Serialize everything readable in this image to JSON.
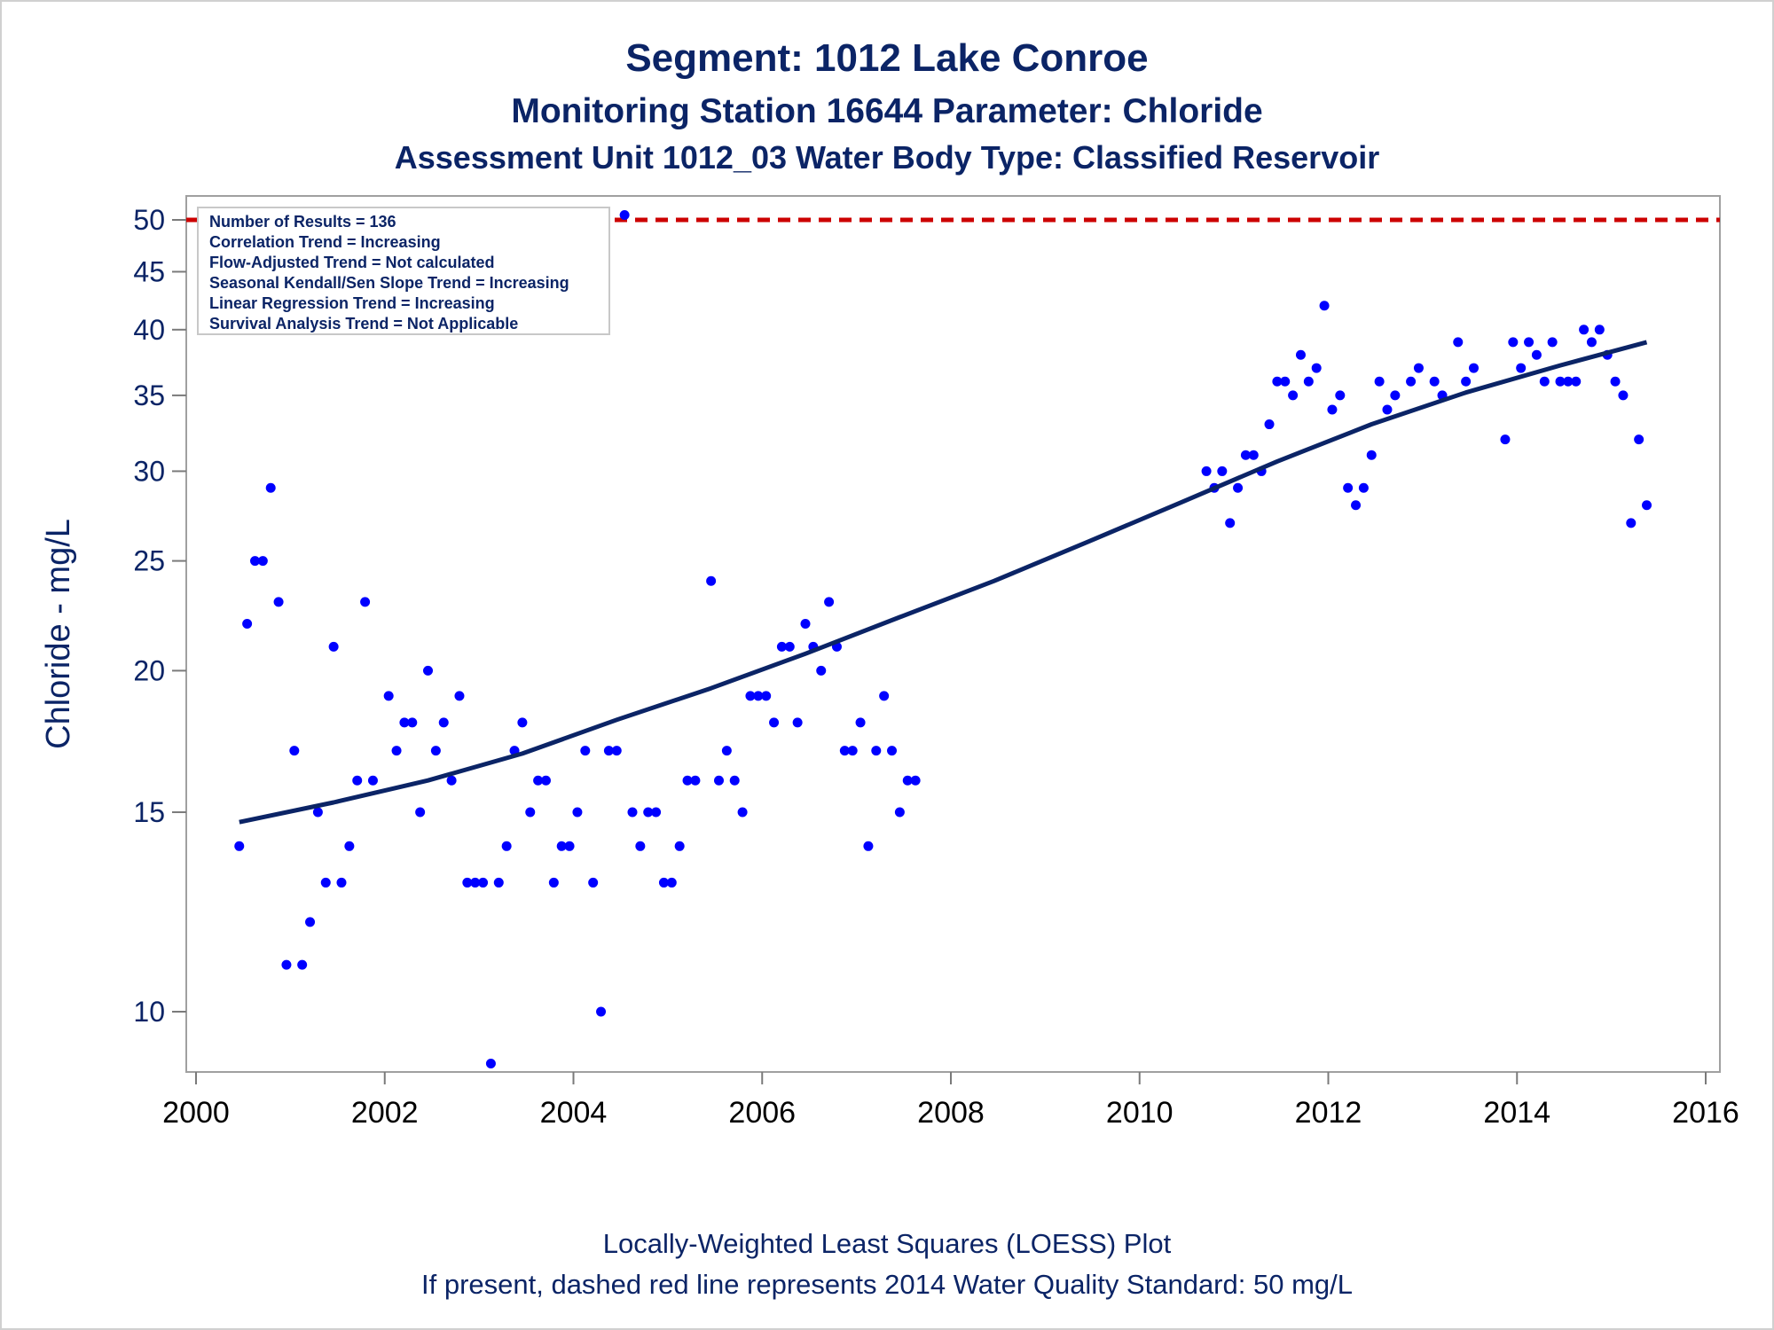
{
  "title": "Segment: 1012  Lake Conroe",
  "subtitle": "Monitoring Station 16644 Parameter: Chloride",
  "subtitle2": "Assessment Unit 1012_03   Water Body Type: Classified Reservoir",
  "ylabel": "Chloride - mg/L",
  "footnote1": "Locally-Weighted Least Squares (LOESS) Plot",
  "footnote2": "If present, dashed red line represents 2014 Water Quality Standard: 50     mg/L",
  "inset": [
    "Number of Results = 136",
    "Correlation Trend = Increasing",
    "Flow-Adjusted Trend = Not calculated",
    "Seasonal Kendall/Sen Slope Trend = Increasing",
    "Linear Regression Trend = Increasing",
    "Survival Analysis Trend = Not Applicable"
  ],
  "colors": {
    "points": "#0000ff",
    "loess": "#0b2466",
    "standard": "#cc0000",
    "text": "#0b2466"
  },
  "chart_data": {
    "type": "scatter",
    "y_scale": "log",
    "xlim": [
      "2000",
      "2016"
    ],
    "ylim": [
      9,
      50
    ],
    "x_ticks": [
      "2000",
      "2002",
      "2004",
      "2006",
      "2008",
      "2010",
      "2012",
      "2014",
      "2016"
    ],
    "y_ticks": [
      10,
      15,
      20,
      25,
      30,
      35,
      40,
      45,
      50
    ],
    "standard_line": 50,
    "series": [
      {
        "type": "scatter",
        "points": [
          [
            "2000-06",
            14
          ],
          [
            "2000-07",
            22
          ],
          [
            "2000-08",
            25
          ],
          [
            "2000-09",
            25
          ],
          [
            "2000-10",
            29
          ],
          [
            "2000-11",
            23
          ],
          [
            "2000-12",
            11
          ],
          [
            "2001-01",
            17
          ],
          [
            "2001-02",
            11
          ],
          [
            "2001-03",
            12
          ],
          [
            "2001-04",
            15
          ],
          [
            "2001-05",
            13
          ],
          [
            "2001-06",
            21
          ],
          [
            "2001-07",
            13
          ],
          [
            "2001-08",
            14
          ],
          [
            "2001-09",
            16
          ],
          [
            "2001-10",
            23
          ],
          [
            "2001-11",
            16
          ],
          [
            "2002-01",
            19
          ],
          [
            "2002-02",
            17
          ],
          [
            "2002-03",
            18
          ],
          [
            "2002-04",
            18
          ],
          [
            "2002-05",
            15
          ],
          [
            "2002-06",
            20
          ],
          [
            "2002-07",
            17
          ],
          [
            "2002-08",
            18
          ],
          [
            "2002-09",
            16
          ],
          [
            "2002-10",
            19
          ],
          [
            "2002-11",
            13
          ],
          [
            "2002-12",
            13
          ],
          [
            "2003-01",
            13
          ],
          [
            "2003-02",
            9
          ],
          [
            "2003-03",
            13
          ],
          [
            "2003-04",
            14
          ],
          [
            "2003-05",
            17
          ],
          [
            "2003-06",
            18
          ],
          [
            "2003-07",
            15
          ],
          [
            "2003-08",
            16
          ],
          [
            "2003-09",
            16
          ],
          [
            "2003-10",
            13
          ],
          [
            "2003-11",
            14
          ],
          [
            "2003-12",
            14
          ],
          [
            "2004-01",
            15
          ],
          [
            "2004-02",
            17
          ],
          [
            "2004-03",
            13
          ],
          [
            "2004-04",
            10
          ],
          [
            "2004-05",
            17
          ],
          [
            "2004-06",
            17
          ],
          [
            "2004-07",
            50.5
          ],
          [
            "2004-08",
            15
          ],
          [
            "2004-09",
            14
          ],
          [
            "2004-10",
            15
          ],
          [
            "2004-11",
            15
          ],
          [
            "2004-12",
            13
          ],
          [
            "2005-01",
            13
          ],
          [
            "2005-02",
            14
          ],
          [
            "2005-03",
            16
          ],
          [
            "2005-04",
            16
          ],
          [
            "2005-06",
            24
          ],
          [
            "2005-07",
            16
          ],
          [
            "2005-08",
            17
          ],
          [
            "2005-09",
            16
          ],
          [
            "2005-10",
            15
          ],
          [
            "2005-11",
            19
          ],
          [
            "2005-12",
            19
          ],
          [
            "2006-01",
            19
          ],
          [
            "2006-02",
            18
          ],
          [
            "2006-03",
            21
          ],
          [
            "2006-04",
            21
          ],
          [
            "2006-05",
            18
          ],
          [
            "2006-06",
            22
          ],
          [
            "2006-07",
            21
          ],
          [
            "2006-08",
            20
          ],
          [
            "2006-09",
            23
          ],
          [
            "2006-10",
            21
          ],
          [
            "2006-11",
            17
          ],
          [
            "2006-12",
            17
          ],
          [
            "2007-01",
            18
          ],
          [
            "2007-02",
            14
          ],
          [
            "2007-03",
            17
          ],
          [
            "2007-04",
            19
          ],
          [
            "2007-05",
            17
          ],
          [
            "2007-06",
            15
          ],
          [
            "2007-07",
            16
          ],
          [
            "2007-08",
            16
          ],
          [
            "2010-09",
            30
          ],
          [
            "2010-10",
            29
          ],
          [
            "2010-11",
            30
          ],
          [
            "2010-12",
            27
          ],
          [
            "2011-01",
            29
          ],
          [
            "2011-02",
            31
          ],
          [
            "2011-03",
            31
          ],
          [
            "2011-04",
            30
          ],
          [
            "2011-05",
            33
          ],
          [
            "2011-06",
            36
          ],
          [
            "2011-07",
            36
          ],
          [
            "2011-08",
            35
          ],
          [
            "2011-09",
            38
          ],
          [
            "2011-10",
            36
          ],
          [
            "2011-11",
            37
          ],
          [
            "2011-12",
            42
          ],
          [
            "2012-01",
            34
          ],
          [
            "2012-02",
            35
          ],
          [
            "2012-03",
            29
          ],
          [
            "2012-04",
            28
          ],
          [
            "2012-05",
            29
          ],
          [
            "2012-06",
            31
          ],
          [
            "2012-07",
            36
          ],
          [
            "2012-08",
            34
          ],
          [
            "2012-09",
            35
          ],
          [
            "2012-11",
            36
          ],
          [
            "2012-12",
            37
          ],
          [
            "2013-02",
            36
          ],
          [
            "2013-03",
            35
          ],
          [
            "2013-05",
            39
          ],
          [
            "2013-06",
            36
          ],
          [
            "2013-07",
            37
          ],
          [
            "2013-11",
            32
          ],
          [
            "2013-12",
            39
          ],
          [
            "2014-01",
            37
          ],
          [
            "2014-02",
            39
          ],
          [
            "2014-03",
            38
          ],
          [
            "2014-04",
            36
          ],
          [
            "2014-05",
            39
          ],
          [
            "2014-06",
            36
          ],
          [
            "2014-07",
            36
          ],
          [
            "2014-08",
            36
          ],
          [
            "2014-09",
            40
          ],
          [
            "2014-10",
            39
          ],
          [
            "2014-11",
            40
          ],
          [
            "2014-12",
            38
          ],
          [
            "2015-01",
            36
          ],
          [
            "2015-02",
            35
          ],
          [
            "2015-03",
            27
          ],
          [
            "2015-04",
            32
          ],
          [
            "2015-05",
            28
          ]
        ]
      },
      {
        "type": "line",
        "points": [
          [
            "2000-06",
            14.7
          ],
          [
            "2001-06",
            15.3
          ],
          [
            "2002-06",
            16.0
          ],
          [
            "2003-06",
            16.9
          ],
          [
            "2004-06",
            18.1
          ],
          [
            "2005-06",
            19.3
          ],
          [
            "2006-06",
            20.7
          ],
          [
            "2007-06",
            22.3
          ],
          [
            "2008-06",
            24.0
          ],
          [
            "2009-06",
            26.0
          ],
          [
            "2010-06",
            28.2
          ],
          [
            "2011-06",
            30.6
          ],
          [
            "2012-06",
            33.0
          ],
          [
            "2013-06",
            35.2
          ],
          [
            "2014-06",
            37.2
          ],
          [
            "2015-05",
            39.0
          ]
        ]
      }
    ]
  }
}
